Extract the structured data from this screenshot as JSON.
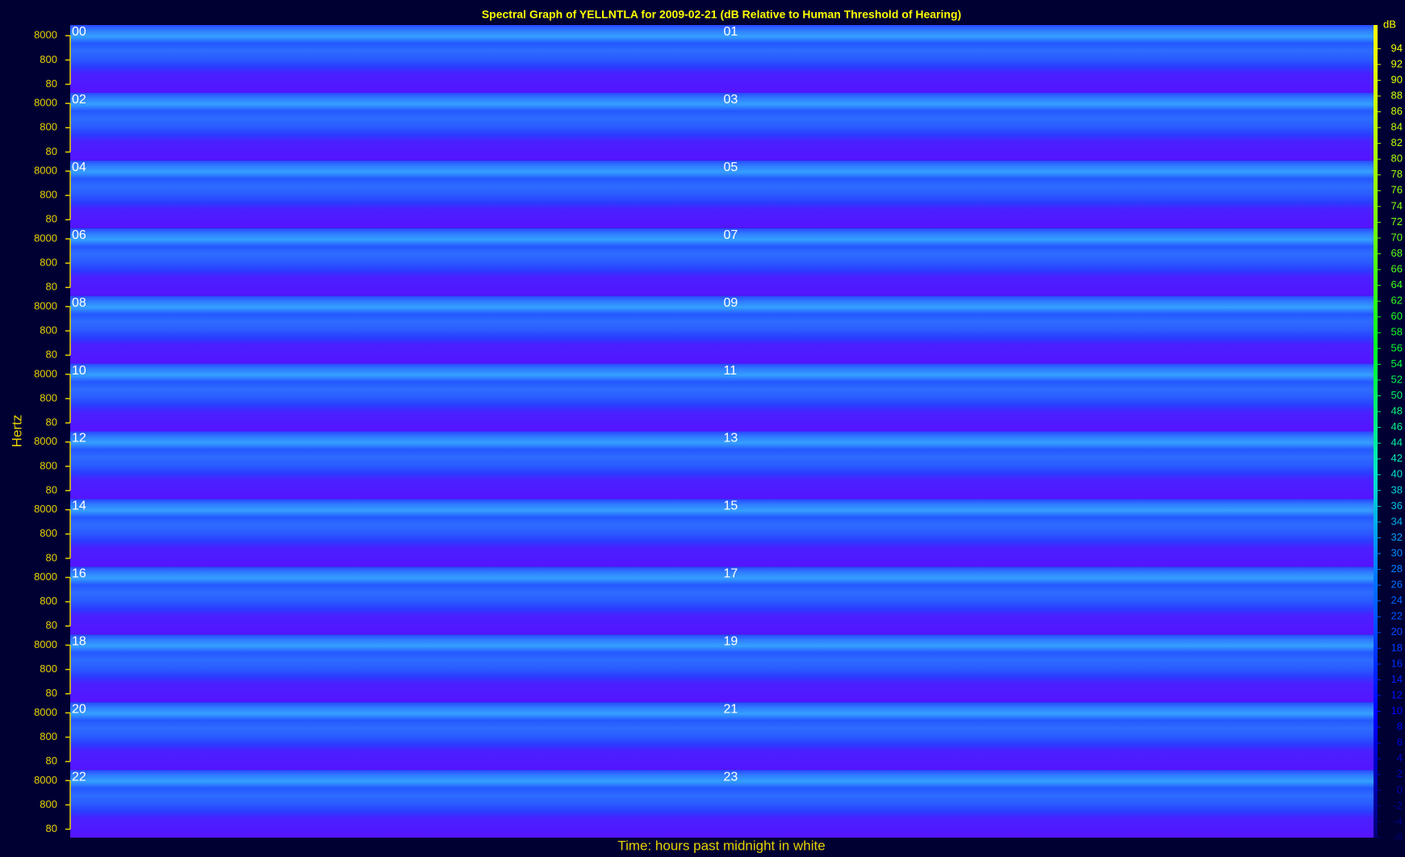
{
  "chart_data": {
    "type": "spectrogram",
    "title": "Spectral Graph of YELLNTLA for 2009-02-21 (dB Relative to Human Threshold of Hearing)",
    "xlabel": "Time: hours past midnight in white",
    "ylabel": "Hertz",
    "hours": [
      "00",
      "01",
      "02",
      "03",
      "04",
      "05",
      "06",
      "07",
      "08",
      "09",
      "10",
      "11",
      "12",
      "13",
      "14",
      "15",
      "16",
      "17",
      "18",
      "19",
      "20",
      "21",
      "22",
      "23"
    ],
    "ylim": [
      36,
      22000
    ],
    "yticks": [
      8000,
      800,
      80
    ],
    "ylog": true,
    "colorbar": {
      "label": "dB",
      "lim": [
        -6,
        97
      ],
      "ticks": [
        94,
        92,
        90,
        88,
        86,
        84,
        82,
        80,
        78,
        76,
        74,
        72,
        70,
        68,
        66,
        64,
        62,
        60,
        58,
        56,
        54,
        52,
        50,
        48,
        46,
        44,
        42,
        40,
        38,
        36,
        34,
        32,
        30,
        28,
        26,
        24,
        22,
        20,
        18,
        16,
        14,
        12,
        10,
        8,
        6,
        4,
        2,
        0,
        -2,
        -4,
        -6
      ]
    }
  }
}
